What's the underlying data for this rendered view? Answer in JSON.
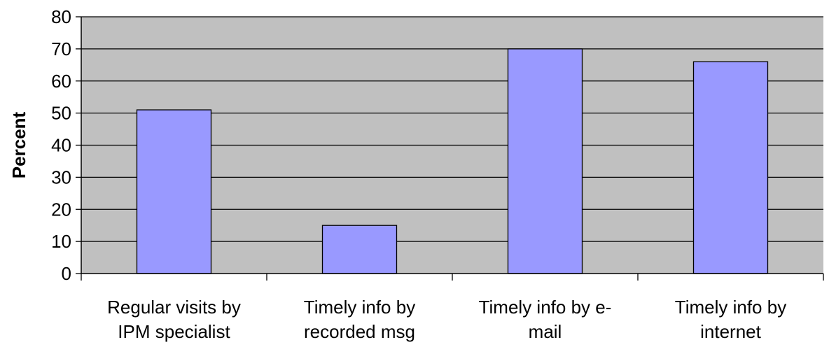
{
  "chart_data": {
    "type": "bar",
    "title": "",
    "xlabel": "",
    "ylabel": "Percent",
    "ylim": [
      0,
      80
    ],
    "yticks": [
      0,
      10,
      20,
      30,
      40,
      50,
      60,
      70,
      80
    ],
    "grid": true,
    "legend": "none",
    "categories": [
      [
        "Regular visits by",
        "IPM specialist"
      ],
      [
        "Timely info by",
        "recorded msg"
      ],
      [
        "Timely info by e-",
        "mail"
      ],
      [
        "Timely info by",
        "internet"
      ]
    ],
    "values": [
      51,
      15,
      70,
      66
    ],
    "colors": {
      "plot_background": "#c0c0c0",
      "bar_fill": "#9999ff",
      "bar_stroke": "#000000",
      "gridline": "#000000"
    }
  }
}
